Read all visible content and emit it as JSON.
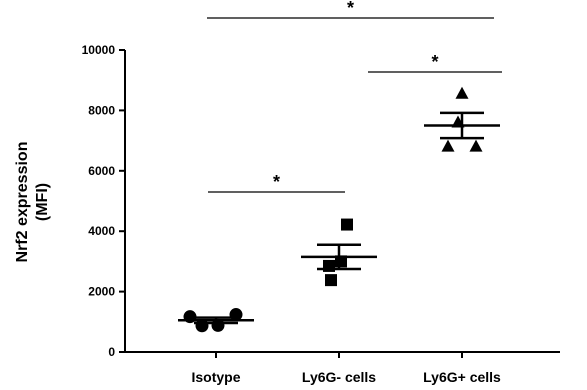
{
  "chart_data": {
    "type": "scatter",
    "ylabel_line1": "Nrf2 expression",
    "ylabel_line2": "(MFI)",
    "xlabel": "",
    "title": "",
    "ylim": [
      0,
      10000
    ],
    "yticks": [
      0,
      2000,
      4000,
      6000,
      8000,
      10000
    ],
    "categories": [
      "Isotype",
      "Ly6G- cells",
      "Ly6G+ cells"
    ],
    "series": [
      {
        "category": "Isotype",
        "marker": "circle",
        "points": [
          1170,
          870,
          880,
          1240
        ],
        "mean": 1050,
        "sem_low": 960,
        "sem_high": 1140
      },
      {
        "category": "Ly6G- cells",
        "marker": "square",
        "points": [
          4220,
          3000,
          2850,
          2380
        ],
        "mean": 3150,
        "sem_low": 2750,
        "sem_high": 3550
      },
      {
        "category": "Ly6G+ cells",
        "marker": "triangle",
        "points": [
          8550,
          7600,
          6800,
          6800
        ],
        "mean": 7500,
        "sem_low": 7080,
        "sem_high": 7920
      }
    ],
    "significance": [
      {
        "from": "Isotype",
        "to": "Ly6G+ cells",
        "label": "*"
      },
      {
        "from": "Ly6G- cells",
        "to": "Ly6G+ cells",
        "label": "*"
      },
      {
        "from": "Isotype",
        "to": "Ly6G- cells",
        "label": "*"
      }
    ]
  }
}
